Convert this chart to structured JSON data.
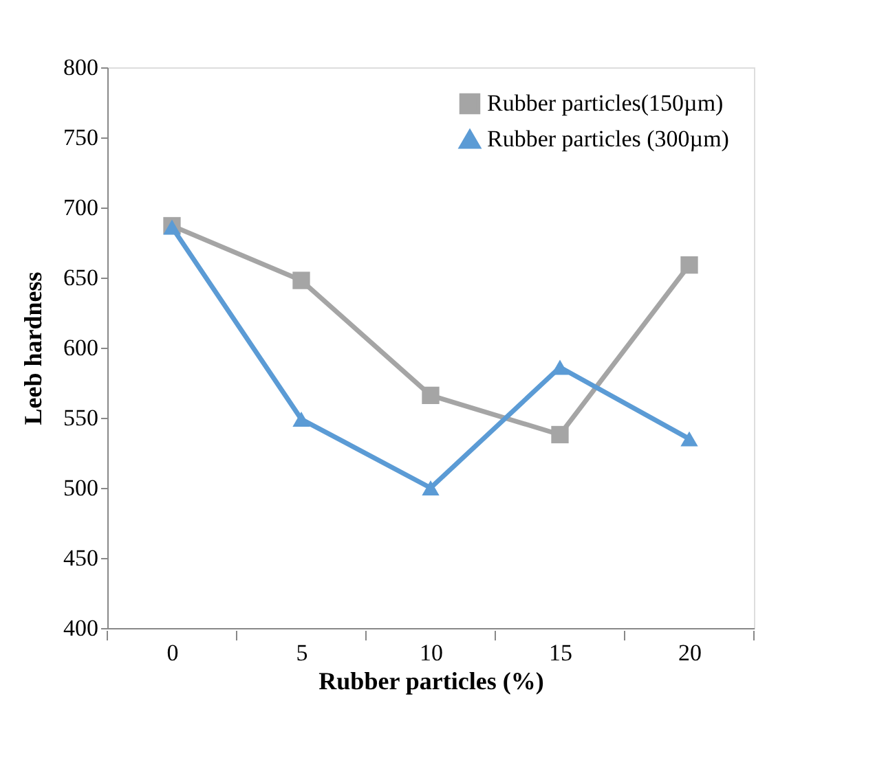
{
  "chart_data": {
    "type": "line",
    "xlabel": "Rubber particles (%)",
    "ylabel": "Leeb hardness",
    "categories": [
      "0",
      "5",
      "10",
      "15",
      "20"
    ],
    "ylim": [
      400,
      800
    ],
    "yticks": [
      400,
      450,
      500,
      550,
      600,
      650,
      700,
      750,
      800
    ],
    "grid": false,
    "legend": "top right",
    "series": [
      {
        "name": "Rubber particles(150µm)",
        "color": "#a5a5a5",
        "marker": "square",
        "values": [
          687,
          648,
          566,
          538,
          659
        ]
      },
      {
        "name": "Rubber particles (300µm)",
        "color": "#5b9bd5",
        "marker": "triangle",
        "values": [
          686,
          549,
          500,
          586,
          535
        ]
      }
    ]
  }
}
